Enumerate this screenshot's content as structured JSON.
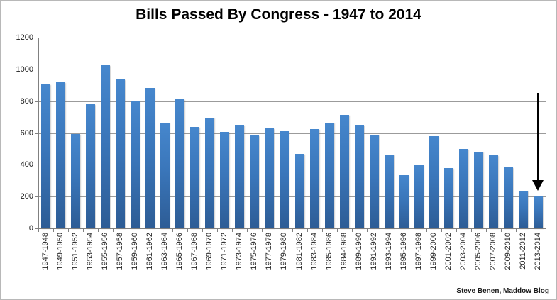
{
  "title": "Bills Passed By Congress - 1947 to 2014",
  "attribution": "Steve Benen, Maddow Blog",
  "colors": {
    "bar_top": "#4687cd",
    "bar_bottom": "#2d5c95",
    "gridline": "#9b9b9b",
    "axis": "#808080",
    "arrow": "#000000",
    "background": "#ffffff"
  },
  "chart_data": {
    "type": "bar",
    "title": "Bills Passed By Congress - 1947 to 2014",
    "categories": [
      "1947-1948",
      "1949-1950",
      "1951-1952",
      "1953-1954",
      "1955-1956",
      "1957-1958",
      "1959-1960",
      "1961-1962",
      "1963-1964",
      "1965-1966",
      "1967-1968",
      "1969-1970",
      "1971-1972",
      "1973-1974",
      "1975-1976",
      "1977-1978",
      "1979-1980",
      "1981-1982",
      "1983-1984",
      "1985-1986",
      "1984-1988",
      "1989-1990",
      "1991-1992",
      "1993-1994",
      "1995-1996",
      "1997-1998",
      "1999-2000",
      "2001-2002",
      "2003-2004",
      "2005-2006",
      "2007-2008",
      "2009-2010",
      "2011-2012",
      "2013-2014"
    ],
    "values": [
      905,
      920,
      595,
      780,
      1025,
      935,
      800,
      885,
      665,
      810,
      640,
      695,
      605,
      650,
      585,
      630,
      610,
      470,
      625,
      665,
      715,
      650,
      590,
      465,
      335,
      395,
      580,
      378,
      500,
      482,
      460,
      383,
      238,
      200
    ],
    "xlabel": "",
    "ylabel": "",
    "ylim": [
      0,
      1200
    ],
    "yticks": [
      0,
      200,
      400,
      600,
      800,
      1000,
      1200
    ],
    "grid": true,
    "legend": false,
    "annotations": [
      {
        "type": "down-arrow",
        "target_category": "2013-2014",
        "note": "black arrow pointing at final bar"
      }
    ]
  }
}
